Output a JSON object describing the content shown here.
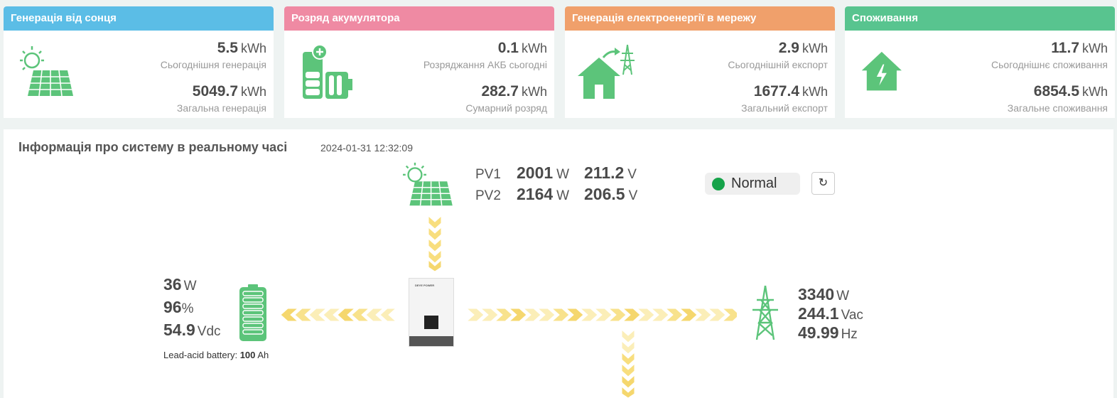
{
  "cards": [
    {
      "title": "Генерація від сонця",
      "color": "#5bbde6",
      "icon": "solar-panel-icon",
      "today_value": "5.5",
      "today_unit": "kWh",
      "today_label": "Сьогоднішня генерація",
      "total_value": "5049.7",
      "total_unit": "kWh",
      "total_label": "Загальна генерація"
    },
    {
      "title": "Розряд акумулятора",
      "color": "#ef8aa3",
      "icon": "battery-discharge-icon",
      "today_value": "0.1",
      "today_unit": "kWh",
      "today_label": "Розряджання АКБ сьогодні",
      "total_value": "282.7",
      "total_unit": "kWh",
      "total_label": "Сумарний розряд"
    },
    {
      "title": "Генерація електроенергії в мережу",
      "color": "#f0a06b",
      "icon": "grid-export-icon",
      "today_value": "2.9",
      "today_unit": "kWh",
      "today_label": "Сьогоднішній експорт",
      "total_value": "1677.4",
      "total_unit": "kWh",
      "total_label": "Загальний експорт"
    },
    {
      "title": "Споживання",
      "color": "#58c48f",
      "icon": "home-consumption-icon",
      "today_value": "11.7",
      "today_unit": "kWh",
      "today_label": "Сьогоднішнє споживання",
      "total_value": "6854.5",
      "total_unit": "kWh",
      "total_label": "Загальне споживання"
    }
  ],
  "realtime": {
    "title": "Інформація про систему в реальному часі",
    "timestamp": "2024-01-31 12:32:09",
    "pv": [
      {
        "name": "PV1",
        "power": "2001",
        "power_unit": "W",
        "voltage": "211.2",
        "voltage_unit": "V"
      },
      {
        "name": "PV2",
        "power": "2164",
        "power_unit": "W",
        "voltage": "206.5",
        "voltage_unit": "V"
      }
    ],
    "status": {
      "text": "Normal",
      "color": "#16a34a"
    },
    "refresh_icon": "refresh-icon",
    "battery": {
      "power": "36",
      "power_unit": "W",
      "soc": "96",
      "soc_unit": "%",
      "voltage": "54.9",
      "voltage_unit": "Vdc",
      "type_label": "Lead-acid battery:",
      "capacity": "100",
      "capacity_unit": "Ah"
    },
    "grid": {
      "power": "3340",
      "power_unit": "W",
      "voltage": "244.1",
      "voltage_unit": "Vac",
      "frequency": "49.99",
      "frequency_unit": "Hz"
    },
    "inverter_brand": "DEYE POWER"
  },
  "colors": {
    "green_icon": "#5cc47a",
    "flow_arrow": "#f5d76e",
    "flow_arrow_light": "#fbeeb8"
  }
}
